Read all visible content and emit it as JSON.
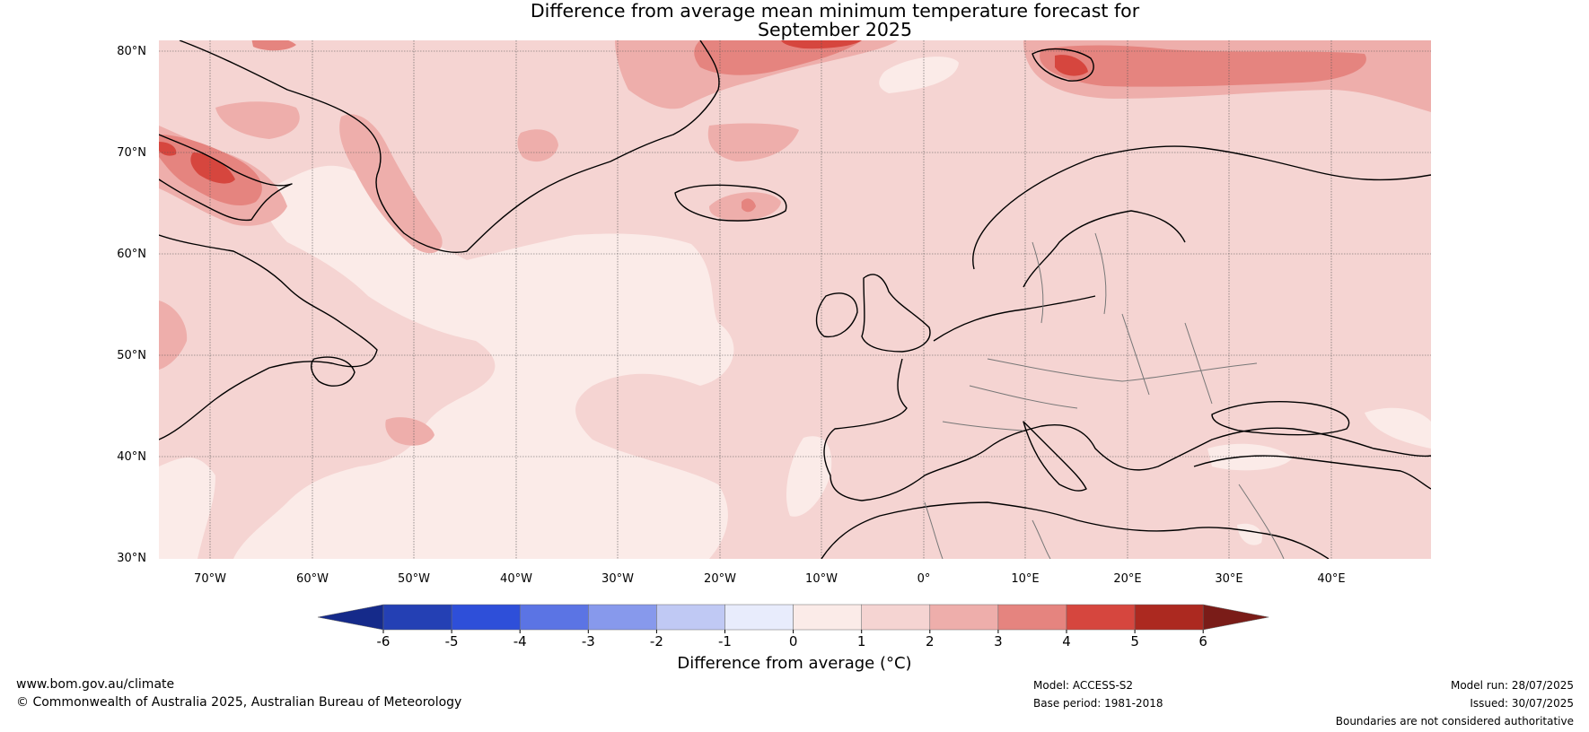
{
  "title_line1": "Difference from average mean minimum temperature forecast for",
  "title_line2": "September 2025",
  "latitudes": [
    "80°N",
    "70°N",
    "60°N",
    "50°N",
    "40°N",
    "30°N"
  ],
  "longitudes": [
    "70°W",
    "60°W",
    "50°W",
    "40°W",
    "30°W",
    "20°W",
    "10°W",
    "0°",
    "10°E",
    "20°E",
    "30°E",
    "40°E"
  ],
  "colorbar": {
    "label": "Difference from average (°C)",
    "ticks": [
      "-6",
      "-5",
      "-4",
      "-3",
      "-2",
      "-1",
      "0",
      "1",
      "2",
      "3",
      "4",
      "5",
      "6"
    ],
    "bins": [
      {
        "range": "< -6",
        "color": "#152a8a"
      },
      {
        "range": "-6 to -5",
        "color": "#2440b4"
      },
      {
        "range": "-5 to -4",
        "color": "#2e4fd9"
      },
      {
        "range": "-4 to -3",
        "color": "#5b74e4"
      },
      {
        "range": "-3 to -2",
        "color": "#8799ec"
      },
      {
        "range": "-2 to -1",
        "color": "#c0c9f4"
      },
      {
        "range": "-1 to 0",
        "color": "#e8ecfc"
      },
      {
        "range": "0 to 1",
        "color": "#fbebe8"
      },
      {
        "range": "1 to 2",
        "color": "#f5d4d2"
      },
      {
        "range": "2 to 3",
        "color": "#eeaeab"
      },
      {
        "range": "3 to 4",
        "color": "#e5847f"
      },
      {
        "range": "4 to 5",
        "color": "#d6463e"
      },
      {
        "range": "5 to 6",
        "color": "#ac2920"
      },
      {
        "range": "> 6",
        "color": "#7a1c18"
      }
    ]
  },
  "footer": {
    "website": "www.bom.gov.au/climate",
    "copyright": "© Commonwealth of Australia 2025, Australian Bureau of Meteorology",
    "model": "Model: ACCESS-S2",
    "base_period": "Base period: 1981-2018",
    "model_run": "Model run: 28/07/2025",
    "issued": "Issued: 30/07/2025",
    "disclaimer": "Boundaries are not considered authoritative"
  }
}
